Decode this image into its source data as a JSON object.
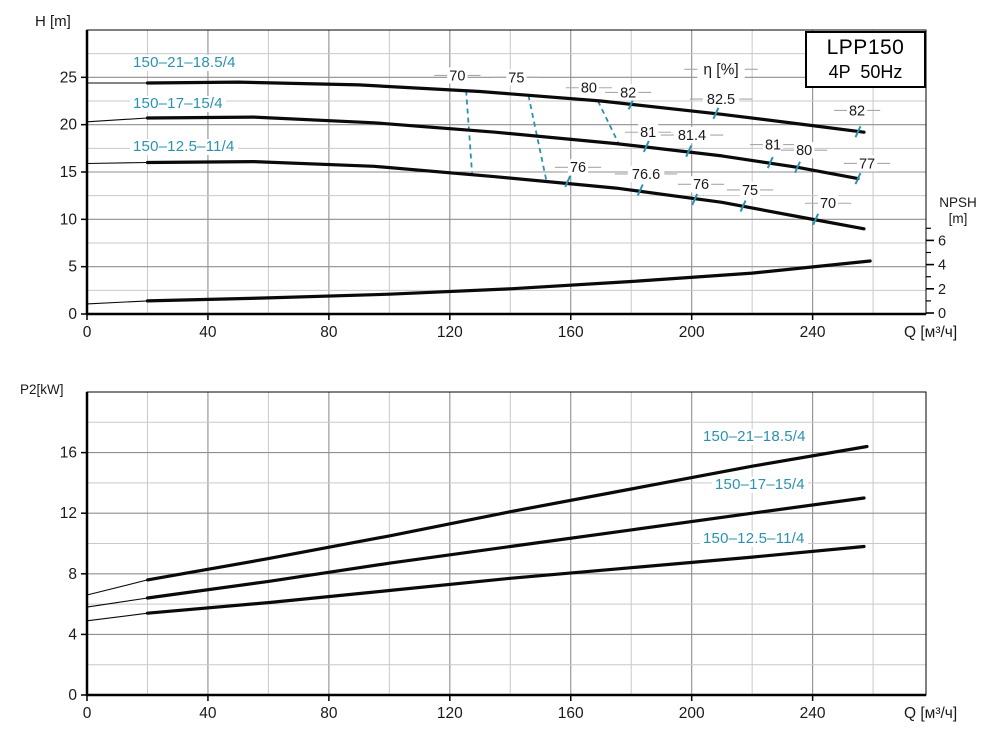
{
  "colors": {
    "teal": "#2b92ad",
    "curve": "#0a0a0a",
    "grid_minor": "#c9c9c9",
    "grid_major": "#8f8f8f",
    "axis": "#000000",
    "label_dash": "#a8a8a8",
    "text": "#1a1a1a"
  },
  "labels": {
    "h_axis": "H [m]",
    "p2_axis": "P2[kW]",
    "q_axis": "Q [м³/ч]",
    "npsh_line1": "NPSH",
    "npsh_line2": "[m]"
  },
  "title_box": {
    "line1": "LPP150",
    "line2": "4P  50Hz"
  },
  "chart_data": [
    {
      "id": "head-curves",
      "type": "line",
      "ylabel": "H [m]",
      "xlabel": "Q [м³/ч]",
      "xlim": [
        0,
        277.5
      ],
      "ylim": [
        0,
        30
      ],
      "xticks": [
        0,
        40,
        80,
        120,
        160,
        200,
        240
      ],
      "yticks": [
        0,
        5,
        10,
        15,
        20,
        25
      ],
      "x_minor_step": 20,
      "y_minor_step": 2.5,
      "grid": true,
      "series": [
        {
          "name": "150–21–18.5/4",
          "thin_until": 20,
          "x": [
            0,
            20,
            50,
            90,
            130,
            170,
            210,
            240,
            257
          ],
          "y": [
            24.4,
            24.4,
            24.5,
            24.2,
            23.5,
            22.5,
            21.1,
            19.9,
            19.2
          ]
        },
        {
          "name": "150–17–15/4",
          "thin_until": 20,
          "x": [
            0,
            20,
            55,
            95,
            135,
            175,
            210,
            235,
            255
          ],
          "y": [
            20.3,
            20.7,
            20.8,
            20.2,
            19.2,
            18.0,
            16.7,
            15.5,
            14.3
          ]
        },
        {
          "name": "150–12.5–11/4",
          "thin_until": 20,
          "x": [
            0,
            20,
            55,
            95,
            135,
            175,
            210,
            235,
            257
          ],
          "y": [
            15.9,
            16.0,
            16.1,
            15.6,
            14.5,
            13.3,
            11.8,
            10.3,
            9.0
          ]
        },
        {
          "name": "NPSH",
          "axis": "npsh",
          "thin_until": 20,
          "x": [
            0,
            20,
            60,
            100,
            140,
            180,
            220,
            259
          ],
          "y": [
            0.75,
            1.0,
            1.25,
            1.55,
            2.0,
            2.6,
            3.3,
            4.3
          ]
        }
      ],
      "npsh_axis": {
        "label_line1": "NPSH",
        "label_line2": "[m]",
        "ticks": [
          0,
          2,
          4,
          6
        ],
        "minor_ticks": [
          1,
          3,
          5,
          7
        ],
        "max": 7
      },
      "efficiency": {
        "label": {
          "t": "η [%]",
          "q": 209.7,
          "h": 25.85,
          "size": 15.5
        },
        "values": [
          {
            "t": "70",
            "q": 122.5,
            "h": 25.2
          },
          {
            "t": "75",
            "q": 142.0,
            "h": 25.0
          },
          {
            "t": "80",
            "q": 166.0,
            "h": 23.9
          },
          {
            "t": "82",
            "q": 179.0,
            "h": 23.4
          },
          {
            "t": "82.5",
            "q": 209.7,
            "h": 22.7
          },
          {
            "t": "82",
            "q": 254.7,
            "h": 21.5
          },
          {
            "t": "81",
            "q": 185.6,
            "h": 19.2
          },
          {
            "t": "81.4",
            "q": 200.1,
            "h": 18.9
          },
          {
            "t": "81",
            "q": 226.9,
            "h": 17.9
          },
          {
            "t": "80",
            "q": 237.2,
            "h": 17.3
          },
          {
            "t": "77",
            "q": 258.0,
            "h": 15.9
          },
          {
            "t": "76",
            "q": 162.4,
            "h": 15.5
          },
          {
            "t": "76.6",
            "q": 184.9,
            "h": 14.8
          },
          {
            "t": "76",
            "q": 203.1,
            "h": 13.7
          },
          {
            "t": "75",
            "q": 219.3,
            "h": 13.1
          },
          {
            "t": "70",
            "q": 245.1,
            "h": 11.7
          }
        ],
        "curve_ticks": [
          {
            "q": 180,
            "h": 22.2
          },
          {
            "q": 208,
            "h": 21.2
          },
          {
            "q": 255,
            "h": 19.25
          },
          {
            "q": 185,
            "h": 17.7
          },
          {
            "q": 199,
            "h": 17.2
          },
          {
            "q": 226,
            "h": 16.0
          },
          {
            "q": 235,
            "h": 15.5
          },
          {
            "q": 255,
            "h": 14.3
          },
          {
            "q": 159,
            "h": 14.0
          },
          {
            "q": 183,
            "h": 13.1
          },
          {
            "q": 201,
            "h": 12.1
          },
          {
            "q": 217,
            "h": 11.4
          },
          {
            "q": 241,
            "h": 10.0
          }
        ],
        "dashed_lines": [
          {
            "q1": 125.4,
            "h1": 23.6,
            "q2": 127.4,
            "h2": 14.7
          },
          {
            "q1": 146.0,
            "h1": 23.1,
            "q2": 152.0,
            "h2": 14.0
          },
          {
            "q1": 169.0,
            "h1": 22.5,
            "q2": 176.0,
            "h2": 17.9
          }
        ]
      }
    },
    {
      "id": "power-curves",
      "type": "line",
      "ylabel": "P2[kW]",
      "xlabel": "Q [м³/ч]",
      "xlim": [
        0,
        277.5
      ],
      "ylim": [
        0,
        20
      ],
      "xticks": [
        0,
        40,
        80,
        120,
        160,
        200,
        240
      ],
      "yticks": [
        0,
        4,
        8,
        12,
        16
      ],
      "x_minor_step": 20,
      "y_minor_step": 2,
      "grid": true,
      "series": [
        {
          "name": "150–21–18.5/4",
          "thin_until": 20,
          "x": [
            0,
            20,
            60,
            100,
            140,
            180,
            220,
            258
          ],
          "y": [
            6.6,
            7.6,
            9.0,
            10.5,
            12.1,
            13.6,
            15.1,
            16.4
          ]
        },
        {
          "name": "150–17–15/4",
          "thin_until": 20,
          "x": [
            0,
            20,
            60,
            100,
            140,
            180,
            220,
            257
          ],
          "y": [
            5.8,
            6.4,
            7.5,
            8.7,
            9.8,
            10.9,
            12.0,
            13.0
          ]
        },
        {
          "name": "150–12.5–11/4",
          "thin_until": 20,
          "x": [
            0,
            20,
            60,
            100,
            140,
            180,
            220,
            257
          ],
          "y": [
            4.9,
            5.4,
            6.1,
            6.9,
            7.7,
            8.4,
            9.1,
            9.8
          ]
        }
      ]
    }
  ]
}
